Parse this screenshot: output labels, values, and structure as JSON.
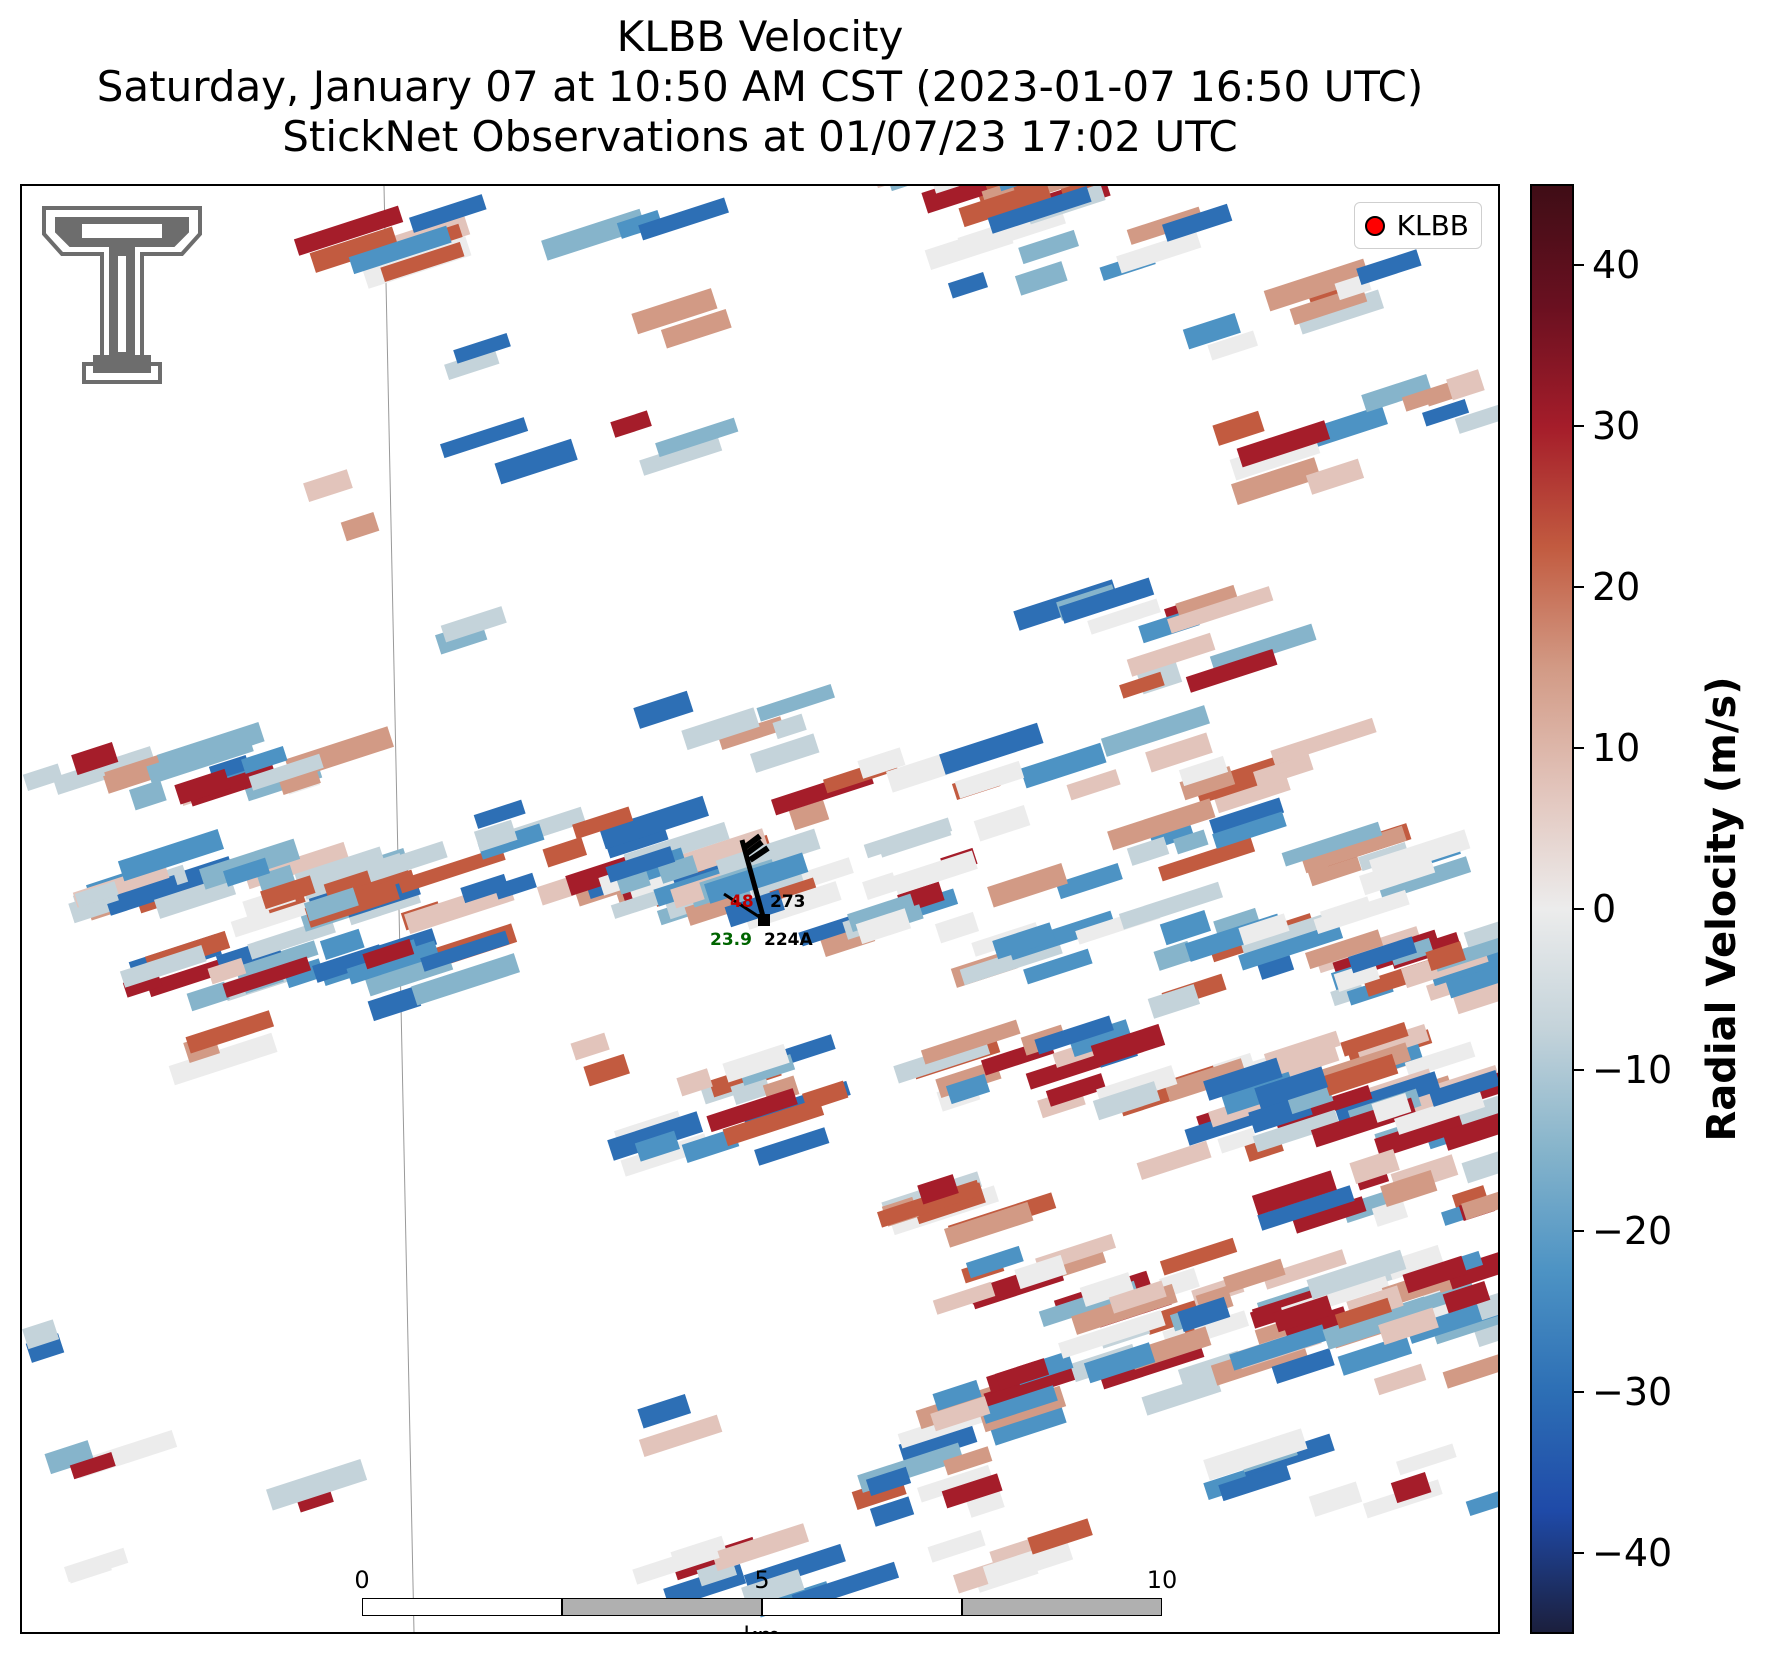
{
  "title": {
    "line1": "KLBB Velocity",
    "line2": "Saturday, January 07 at 10:50 AM CST (2023-01-07 16:50 UTC)",
    "line3": "StickNet Observations at 01/07/23 17:02 UTC"
  },
  "legend": {
    "label": "KLBB",
    "marker_color": "#ff0000"
  },
  "logo": {
    "icon": "texas-tech-double-t-logo",
    "color": "#6d6d6d"
  },
  "station": {
    "id_upper": "273",
    "id_lower": "224A",
    "temperature": "48",
    "dewpoint": "23.9",
    "temperature_color": "#c00000",
    "dewpoint_color": "#006400"
  },
  "scalebar": {
    "ticks": [
      "0",
      "5",
      "10"
    ],
    "unit": "km"
  },
  "colorbar": {
    "title": "Radial Velocity (m/s)",
    "ticks": [
      "40",
      "30",
      "20",
      "10",
      "0",
      "−10",
      "−20",
      "−30",
      "−40"
    ],
    "range": [
      -45,
      45
    ],
    "colors": [
      "#1b1f3d",
      "#1f4aa8",
      "#2d6fb5",
      "#4d93c4",
      "#86b4cb",
      "#c4d3da",
      "#ececec",
      "#e2c4bb",
      "#d29a85",
      "#c25b40",
      "#a51d2a",
      "#6a1020",
      "#3f0d16"
    ]
  }
}
